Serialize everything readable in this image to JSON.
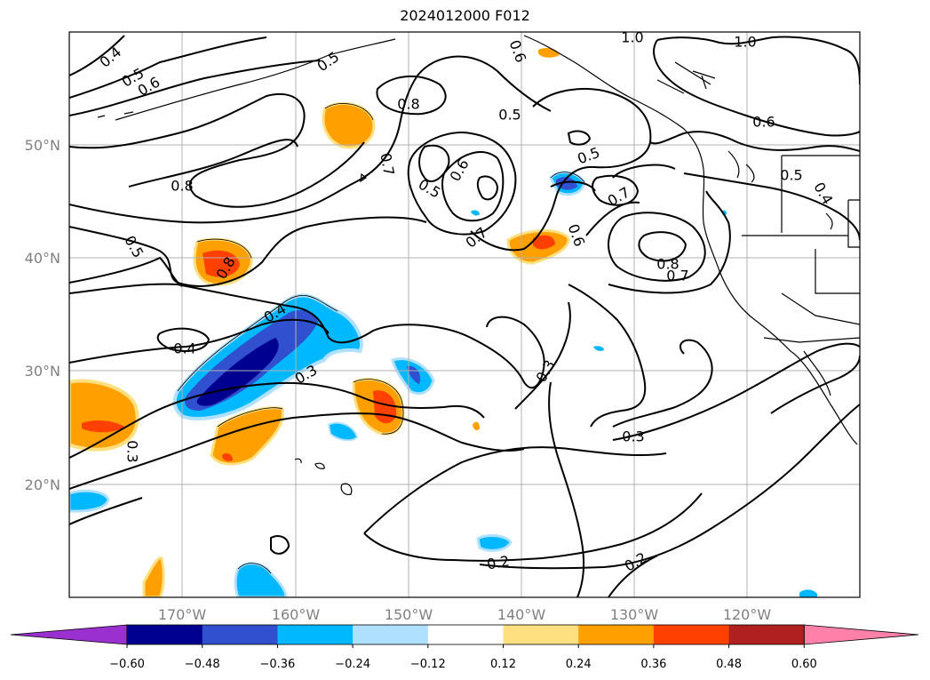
{
  "title": "2024012000 F012",
  "lat_ticks": [
    "50°N",
    "40°N",
    "30°N",
    "20°N"
  ],
  "lon_ticks": [
    "170°W",
    "160°W",
    "150°W",
    "140°W",
    "130°W",
    "120°W"
  ],
  "contour_labels": [
    "0.4",
    "0.5",
    "0.6",
    "0.5",
    "0.8",
    "0.7",
    "0.8",
    "0.5",
    "0.6",
    "0.5",
    "0.5",
    "0.7",
    "0.7",
    "0.6",
    "0.8",
    "0.7",
    "0.5",
    "0.8",
    "0.4",
    "0.4",
    "0.3",
    "0.3",
    "0.3",
    "0.3",
    "0.2",
    "0.2",
    "1.0",
    "1.0",
    "0.6",
    "0.5",
    "0.4",
    "0.6"
  ],
  "colorbar": {
    "ticks": [
      "−0.60",
      "−0.48",
      "−0.36",
      "−0.24",
      "−0.12",
      "0.12",
      "0.24",
      "0.36",
      "0.48",
      "0.60"
    ],
    "colors": [
      "#9a30d0",
      "#000090",
      "#3050d0",
      "#00b8ff",
      "#b0e0ff",
      "#ffffff",
      "#ffe080",
      "#ffa000",
      "#ff4000",
      "#b02020",
      "#ff80a8"
    ]
  }
}
